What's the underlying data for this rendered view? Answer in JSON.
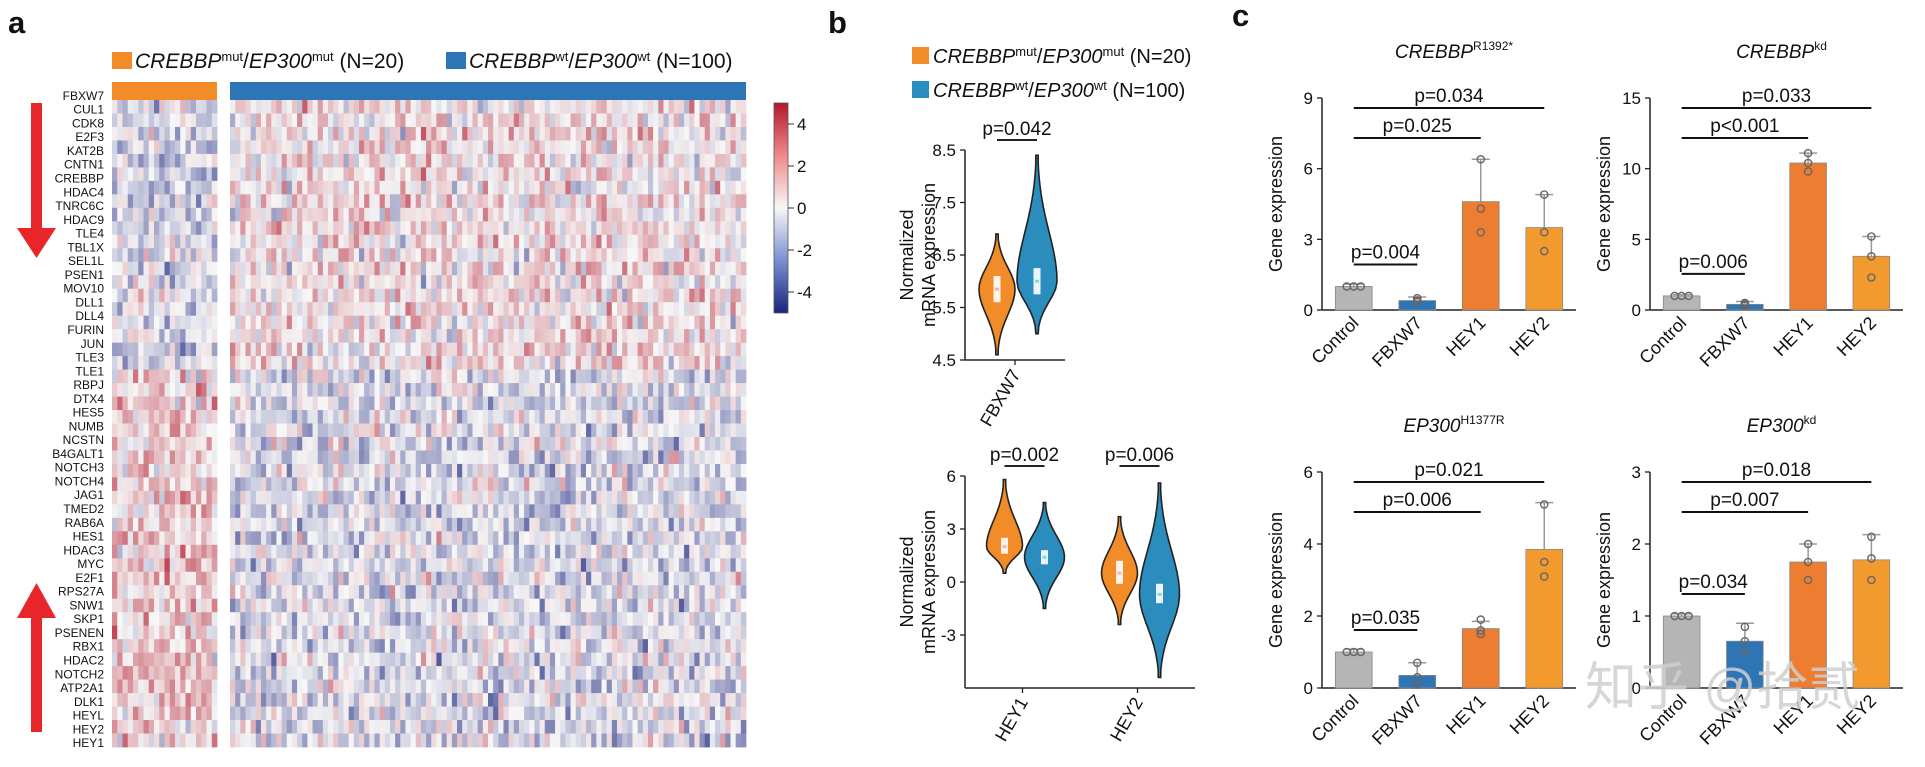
{
  "colors": {
    "orange": "#f28c28",
    "orange_dark": "#ed7d31",
    "blue": "#2e75b6",
    "teal": "#2b8cbe",
    "gray": "#b5b5b5",
    "red_arrow": "#e8262a"
  },
  "panels": {
    "a": "a",
    "b": "b",
    "c": "c"
  },
  "heatmap": {
    "groups": [
      {
        "gene1": "CREBBP",
        "sup1": "mut",
        "sep": "/",
        "gene2": "EP300",
        "sup2": "mut",
        "n_label": " (N=20)"
      },
      {
        "gene1": "CREBBP",
        "sup1": "wt",
        "sep": "/",
        "gene2": "EP300",
        "sup2": "wt",
        "n_label": " (N=100)"
      }
    ],
    "genes": [
      "FBXW7",
      "CUL1",
      "CDK8",
      "E2F3",
      "KAT2B",
      "CNTN1",
      "CREBBP",
      "HDAC4",
      "TNRC6C",
      "HDAC9",
      "TLE4",
      "TBL1X",
      "SEL1L",
      "PSEN1",
      "MOV10",
      "DLL1",
      "DLL4",
      "FURIN",
      "JUN",
      "TLE3",
      "TLE1",
      "RBPJ",
      "DTX4",
      "HES5",
      "NUMB",
      "NCSTN",
      "B4GALT1",
      "NOTCH3",
      "NOTCH4",
      "JAG1",
      "TMED2",
      "RAB6A",
      "HES1",
      "HDAC3",
      "MYC",
      "E2F1",
      "RPS27A",
      "SNW1",
      "SKP1",
      "PSENEN",
      "RBX1",
      "HDAC2",
      "NOTCH2",
      "ATP2A1",
      "DLK1",
      "HEYL",
      "HEY2",
      "HEY1"
    ],
    "n_mut": 20,
    "n_wt": 100,
    "colorbar_ticks": [
      "4",
      "2",
      "0",
      "-2",
      "-4"
    ],
    "colorbar_range": [
      -5,
      5
    ]
  },
  "chart_data": [
    {
      "id": "b-top",
      "type": "violin",
      "ylabel": "Normalized\nmRNA expression",
      "ylim": [
        4.5,
        8.5
      ],
      "yticks": [
        "8.5",
        "7.5",
        "6.5",
        "5.5",
        "4.5"
      ],
      "categories": [
        "FBXW7"
      ],
      "legend": [
        {
          "gene1": "CREBBP",
          "sup1": "mut",
          "sep": "/",
          "gene2": "EP300",
          "sup2": "mut",
          "n_label": " (N=20)"
        },
        {
          "gene1": "CREBBP",
          "sup1": "wt",
          "sep": "/",
          "gene2": "EP300",
          "sup2": "wt",
          "n_label": " (N=100)"
        }
      ],
      "series": [
        {
          "name": "CREBBP mut/EP300 mut",
          "distributions": [
            {
              "min": 4.6,
              "max": 6.9,
              "median": 5.85,
              "q1": 5.6,
              "q3": 6.1
            }
          ]
        },
        {
          "name": "CREBBP wt/EP300 wt",
          "distributions": [
            {
              "min": 5.0,
              "max": 8.4,
              "median": 6.0,
              "q1": 5.75,
              "q3": 6.25
            }
          ]
        }
      ],
      "pvalues": [
        "p=0.042"
      ]
    },
    {
      "id": "b-bottom",
      "type": "violin",
      "ylabel": "Normalized\nmRNA expression",
      "ylim": [
        -6,
        6
      ],
      "yticks": [
        "6",
        "3",
        "0",
        "-3"
      ],
      "categories": [
        "HEY1",
        "HEY2"
      ],
      "series": [
        {
          "name": "CREBBP mut/EP300 mut",
          "distributions": [
            {
              "min": 0.5,
              "max": 5.8,
              "median": 2.0,
              "q1": 1.6,
              "q3": 2.5
            },
            {
              "min": -2.4,
              "max": 3.7,
              "median": 0.5,
              "q1": -0.1,
              "q3": 1.2
            }
          ]
        },
        {
          "name": "CREBBP wt/EP300 wt",
          "distributions": [
            {
              "min": -1.5,
              "max": 4.5,
              "median": 1.4,
              "q1": 1.0,
              "q3": 1.8
            },
            {
              "min": -5.4,
              "max": 5.6,
              "median": -0.7,
              "q1": -1.2,
              "q3": -0.1
            }
          ]
        }
      ],
      "pvalues": [
        "p=0.002",
        "p=0.006"
      ]
    },
    {
      "id": "c1",
      "type": "bar",
      "title_gene": "CREBBP",
      "title_sup": "R1392*",
      "ylabel": "Gene expression",
      "ylim": [
        0,
        9
      ],
      "yticks": [
        "0",
        "3",
        "6",
        "9"
      ],
      "categories": [
        "Control",
        "FBXW7",
        "HEY1",
        "HEY2"
      ],
      "values": [
        1.0,
        0.4,
        4.6,
        3.5
      ],
      "errors": [
        0.1,
        0.15,
        1.8,
        1.4
      ],
      "points": [
        [
          1.0,
          1.0,
          1.0
        ],
        [
          0.4,
          0.35,
          0.5
        ],
        [
          3.3,
          4.3,
          6.4
        ],
        [
          2.5,
          3.3,
          4.9
        ]
      ],
      "comparisons": [
        {
          "label": "p=0.034",
          "from": 0,
          "to": 3
        },
        {
          "label": "p=0.025",
          "from": 0,
          "to": 2
        },
        {
          "label": "p=0.004",
          "from": 0,
          "to": 1
        }
      ]
    },
    {
      "id": "c2",
      "type": "bar",
      "title_gene": "CREBBP",
      "title_sup": "kd",
      "ylabel": "Gene expression",
      "ylim": [
        0,
        15
      ],
      "yticks": [
        "0",
        "5",
        "10",
        "15"
      ],
      "categories": [
        "Control",
        "FBXW7",
        "HEY1",
        "HEY2"
      ],
      "values": [
        1.0,
        0.4,
        10.4,
        3.8
      ],
      "errors": [
        0.1,
        0.2,
        0.7,
        1.4
      ],
      "points": [
        [
          1.0,
          1.0,
          1.0
        ],
        [
          0.3,
          0.4,
          0.5
        ],
        [
          9.8,
          10.4,
          11.1
        ],
        [
          2.3,
          3.8,
          5.2
        ]
      ],
      "comparisons": [
        {
          "label": "p=0.033",
          "from": 0,
          "to": 3
        },
        {
          "label": "p<0.001",
          "from": 0,
          "to": 2
        },
        {
          "label": "p=0.006",
          "from": 0,
          "to": 1
        }
      ]
    },
    {
      "id": "c3",
      "type": "bar",
      "title_gene": "EP300",
      "title_sup": "H1377R",
      "ylabel": "Gene expression",
      "ylim": [
        0,
        6
      ],
      "yticks": [
        "0",
        "2",
        "4",
        "6"
      ],
      "categories": [
        "Control",
        "FBXW7",
        "HEY1",
        "HEY2"
      ],
      "values": [
        1.0,
        0.35,
        1.65,
        3.85
      ],
      "errors": [
        0.08,
        0.35,
        0.2,
        1.3
      ],
      "points": [
        [
          1.0,
          1.0,
          1.0
        ],
        [
          0.1,
          0.3,
          0.7
        ],
        [
          1.5,
          1.6,
          1.9
        ],
        [
          3.1,
          3.5,
          5.1
        ]
      ],
      "comparisons": [
        {
          "label": "p=0.021",
          "from": 0,
          "to": 3
        },
        {
          "label": "p=0.006",
          "from": 0,
          "to": 2
        },
        {
          "label": "p=0.035",
          "from": 0,
          "to": 1
        }
      ]
    },
    {
      "id": "c4",
      "type": "bar",
      "title_gene": "EP300",
      "title_sup": "kd",
      "ylabel": "Gene expression",
      "ylim": [
        0,
        3
      ],
      "yticks": [
        "0",
        "1",
        "2",
        "3"
      ],
      "categories": [
        "Control",
        "FBXW7",
        "HEY1",
        "HEY2"
      ],
      "values": [
        1.0,
        0.65,
        1.75,
        1.78
      ],
      "errors": [
        0.03,
        0.25,
        0.25,
        0.35
      ],
      "points": [
        [
          1.0,
          1.0,
          1.0
        ],
        [
          0.5,
          0.65,
          0.85
        ],
        [
          1.5,
          1.75,
          2.0
        ],
        [
          1.5,
          1.8,
          2.1
        ]
      ],
      "comparisons": [
        {
          "label": "p=0.018",
          "from": 0,
          "to": 3
        },
        {
          "label": "p=0.007",
          "from": 0,
          "to": 2
        },
        {
          "label": "p=0.034",
          "from": 0,
          "to": 1
        }
      ]
    }
  ],
  "watermark": "知乎 @拾贰"
}
